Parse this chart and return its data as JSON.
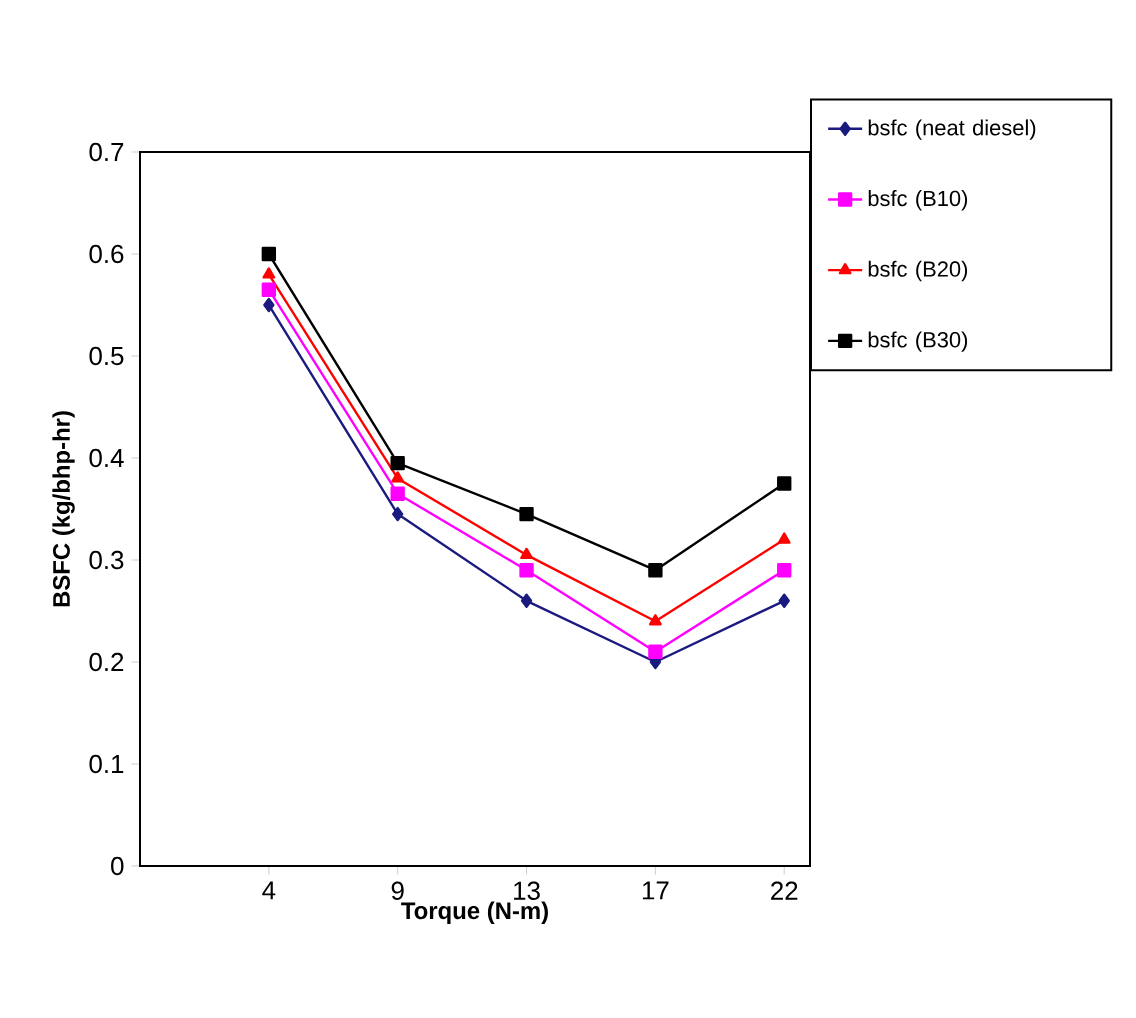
{
  "chart_data": {
    "type": "line",
    "xlabel": "Torque (N-m)",
    "ylabel": "BSFC  (kg/bhp-hr)",
    "categories": [
      "4",
      "9",
      "13",
      "17",
      "22"
    ],
    "series": [
      {
        "name": "bsfc (neat diesel)",
        "color": "#1a1a80",
        "marker": "diamond",
        "values": [
          0.55,
          0.345,
          0.26,
          0.2,
          0.26
        ]
      },
      {
        "name": "bsfc (B10)",
        "color": "#ff00ff",
        "marker": "square",
        "values": [
          0.565,
          0.365,
          0.29,
          0.21,
          0.29
        ]
      },
      {
        "name": "bsfc (B20)",
        "color": "#ff0000",
        "marker": "triangle",
        "values": [
          0.58,
          0.38,
          0.305,
          0.24,
          0.32
        ]
      },
      {
        "name": "bsfc (B30)",
        "color": "#000000",
        "marker": "square",
        "values": [
          0.6,
          0.395,
          0.345,
          0.29,
          0.375
        ]
      }
    ],
    "ylim": [
      0,
      0.7
    ],
    "yticks": [
      0,
      0.1,
      0.2,
      0.3,
      0.4,
      0.5,
      0.6,
      0.7
    ],
    "grid": false,
    "legend": "top right",
    "line_style": "solid"
  }
}
